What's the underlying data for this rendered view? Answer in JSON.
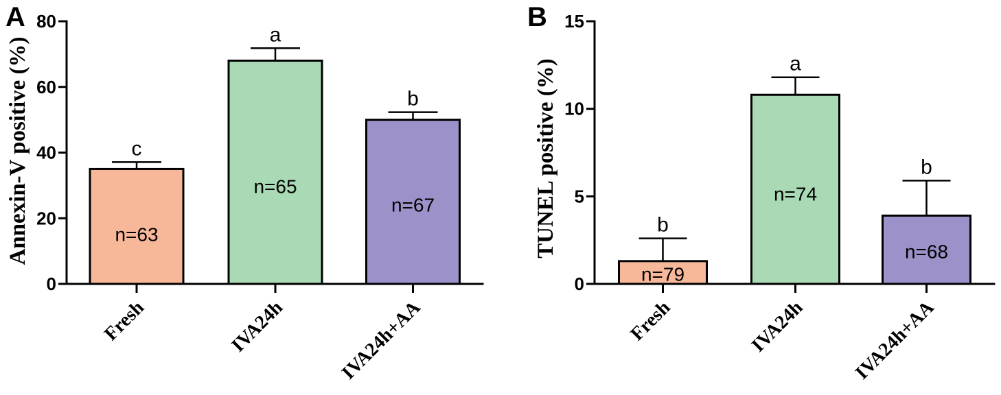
{
  "chart_data": [
    {
      "panel_label": "A",
      "type": "bar",
      "ylabel": "Annexin-V positive (%)",
      "categories": [
        "Fresh",
        "IVA24h",
        "IVA24h+AA"
      ],
      "values": [
        35,
        68,
        50
      ],
      "errors": [
        2.1,
        3.8,
        2.3
      ],
      "significance_letters": [
        "c",
        "a",
        "b"
      ],
      "bar_labels": [
        "n=63",
        "n=65",
        "n=67"
      ],
      "colors": [
        "#F7B89A",
        "#AADAB5",
        "#9C91C8"
      ],
      "ylim": [
        0,
        80
      ],
      "yticks": [
        0,
        20,
        40,
        60,
        80
      ],
      "grid": false
    },
    {
      "panel_label": "B",
      "type": "bar",
      "ylabel": "TUNEL positive (%)",
      "categories": [
        "Fresh",
        "IVA24h",
        "IVA24h+AA"
      ],
      "values": [
        1.3,
        10.8,
        3.9
      ],
      "errors": [
        1.3,
        1.0,
        2.0
      ],
      "significance_letters": [
        "b",
        "a",
        "b"
      ],
      "bar_labels": [
        "n=79",
        "n=74",
        "n=68"
      ],
      "colors": [
        "#F7B89A",
        "#AADAB5",
        "#9C91C8"
      ],
      "ylim": [
        0,
        15
      ],
      "yticks": [
        0,
        5,
        10,
        15
      ],
      "grid": false
    }
  ]
}
